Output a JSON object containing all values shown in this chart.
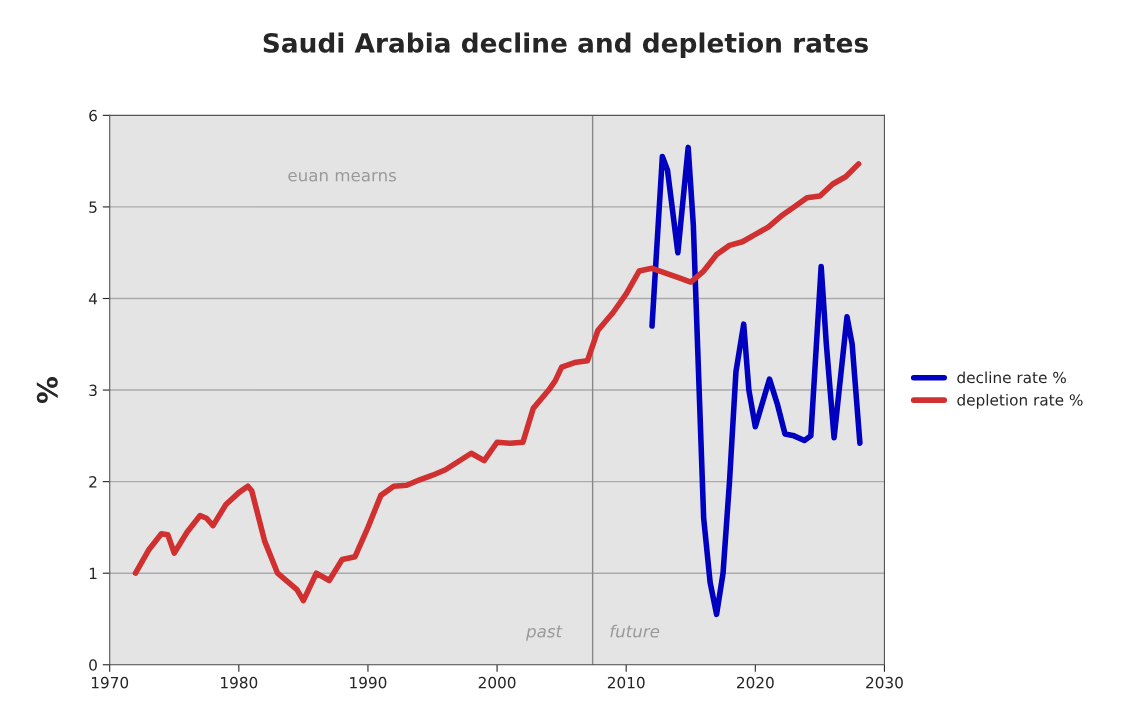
{
  "chart_data": {
    "type": "line",
    "title": "Saudi Arabia decline and depletion rates",
    "ylabel": "%",
    "xlim": [
      1970,
      2030
    ],
    "xticks": [
      1970,
      1980,
      1990,
      2000,
      2010,
      2020,
      2030
    ],
    "ylim": [
      0,
      6
    ],
    "yticks": [
      0,
      1,
      2,
      3,
      4,
      5,
      6
    ],
    "grid": "y",
    "legend": "right",
    "series": [
      {
        "name": "decline rate %",
        "color": "#0000c0",
        "x": [
          2012.0,
          2012.8,
          2013.2,
          2014.0,
          2014.8,
          2015.2,
          2016.0,
          2016.5,
          2017.0,
          2017.5,
          2018.0,
          2018.5,
          2019.1,
          2019.5,
          2020.0,
          2021.1,
          2021.7,
          2022.3,
          2023.0,
          2023.8,
          2024.3,
          2025.1,
          2025.5,
          2026.1,
          2027.1,
          2027.5,
          2028.1
        ],
        "values": [
          3.7,
          5.55,
          5.4,
          4.5,
          5.65,
          4.8,
          1.6,
          0.9,
          0.55,
          1.0,
          2.0,
          3.2,
          3.72,
          3.0,
          2.6,
          3.12,
          2.85,
          2.52,
          2.5,
          2.45,
          2.5,
          4.35,
          3.5,
          2.48,
          3.8,
          3.5,
          2.42
        ]
      },
      {
        "name": "depletion rate %",
        "color": "#d03030",
        "x": [
          1972,
          1973,
          1974,
          1974.5,
          1975,
          1976,
          1977,
          1977.5,
          1978,
          1979,
          1980,
          1980.7,
          1981,
          1982,
          1983,
          1984,
          1984.5,
          1985,
          1986,
          1987,
          1988,
          1989,
          1990,
          1991,
          1992,
          1993,
          1994,
          1995,
          1996,
          1997,
          1998,
          1999,
          2000,
          2001,
          2002,
          2002.8,
          2004,
          2004.5,
          2005,
          2006,
          2007,
          2007.8,
          2009,
          2010,
          2011,
          2012,
          2013,
          2014,
          2015,
          2016,
          2017,
          2018,
          2019,
          2020,
          2021,
          2022,
          2023,
          2024,
          2025,
          2026,
          2027,
          2028
        ],
        "values": [
          1.0,
          1.25,
          1.43,
          1.42,
          1.22,
          1.45,
          1.63,
          1.6,
          1.52,
          1.75,
          1.88,
          1.95,
          1.9,
          1.35,
          1.0,
          0.88,
          0.82,
          0.7,
          1.0,
          0.92,
          1.15,
          1.18,
          1.5,
          1.85,
          1.95,
          1.96,
          2.02,
          2.07,
          2.13,
          2.22,
          2.31,
          2.23,
          2.43,
          2.42,
          2.43,
          2.8,
          3.0,
          3.1,
          3.25,
          3.3,
          3.32,
          3.65,
          3.85,
          4.05,
          4.3,
          4.33,
          4.28,
          4.23,
          4.18,
          4.3,
          4.48,
          4.58,
          4.62,
          4.7,
          4.78,
          4.9,
          5.0,
          5.1,
          5.12,
          5.25,
          5.33,
          5.47
        ]
      }
    ],
    "ref_lines": [
      {
        "axis": "x",
        "value": 2007.4,
        "color": "#888888"
      }
    ],
    "annotations": [
      "euan mearns",
      {
        "text": "past",
        "x": 2007.4,
        "y": 0.35
      },
      {
        "text": "future",
        "x": 2007.4,
        "y": 0.35
      }
    ]
  }
}
